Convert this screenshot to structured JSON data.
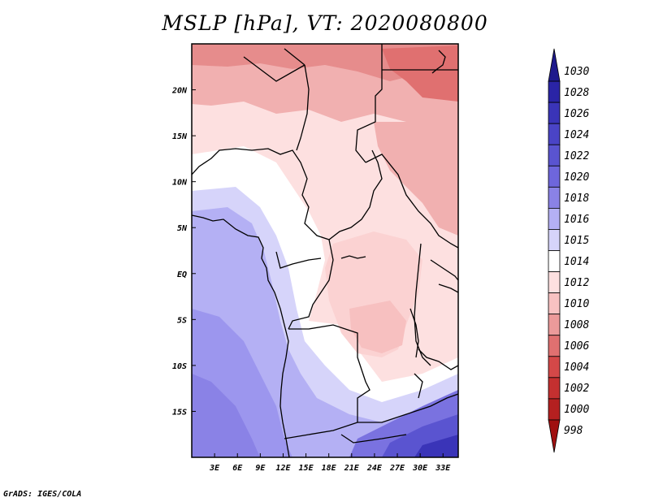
{
  "title": "MSLP [hPa], VT: 2020080800",
  "credit": "GrADS: IGES/COLA",
  "map": {
    "lat_labels": [
      "20N",
      "15N",
      "10N",
      "5N",
      "EQ",
      "5S",
      "10S",
      "15S"
    ],
    "lon_labels": [
      "3E",
      "6E",
      "9E",
      "12E",
      "15E",
      "18E",
      "21E",
      "24E",
      "27E",
      "30E",
      "33E"
    ],
    "lat_values": [
      20,
      15,
      10,
      5,
      0,
      -5,
      -10,
      -15
    ],
    "lon_values": [
      3,
      6,
      9,
      12,
      15,
      18,
      21,
      24,
      27,
      30,
      33
    ],
    "extent": {
      "lon_min": 0,
      "lon_max": 35,
      "lat_min": -20,
      "lat_max": 25
    }
  },
  "colorbar": {
    "labels": [
      "1030",
      "1028",
      "1026",
      "1024",
      "1022",
      "1020",
      "1018",
      "1016",
      "1015",
      "1014",
      "1012",
      "1010",
      "1008",
      "1006",
      "1004",
      "1002",
      "1000",
      "998"
    ],
    "colors": [
      "#1e1a8c",
      "#2a24a6",
      "#3a34b8",
      "#4a44c6",
      "#5a54d0",
      "#6e66dc",
      "#8a82e6",
      "#b4b0f4",
      "#d6d4fa",
      "#ffffff",
      "#fde0e0",
      "#f8c2c2",
      "#ec9a9a",
      "#e07070",
      "#d44848",
      "#c43030",
      "#b42020",
      "#a01010"
    ]
  },
  "colors": {
    "frame": "#000000",
    "low_pressure": "#e07070",
    "mid_pressure": "#fde0e0",
    "neutral": "#ffffff",
    "high_pressure": "#b4b0f4",
    "very_high_pressure": "#4a44c6"
  }
}
